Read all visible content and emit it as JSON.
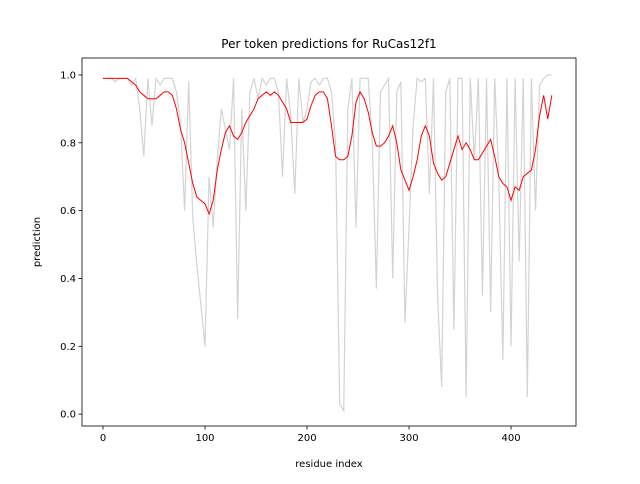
{
  "chart_data": {
    "type": "line",
    "title": "Per token predictions for RuCas12f1",
    "xlabel": "residue index",
    "ylabel": "prediction",
    "x": [
      0,
      4,
      8,
      12,
      16,
      20,
      24,
      28,
      32,
      36,
      40,
      44,
      48,
      52,
      56,
      60,
      64,
      68,
      72,
      76,
      80,
      84,
      88,
      92,
      96,
      100,
      104,
      108,
      112,
      116,
      120,
      124,
      128,
      132,
      136,
      140,
      144,
      148,
      152,
      156,
      160,
      164,
      168,
      172,
      176,
      180,
      184,
      188,
      192,
      196,
      200,
      204,
      208,
      212,
      216,
      220,
      224,
      228,
      232,
      236,
      240,
      244,
      248,
      252,
      256,
      260,
      264,
      268,
      272,
      276,
      280,
      284,
      288,
      292,
      296,
      300,
      304,
      308,
      312,
      316,
      320,
      324,
      328,
      332,
      336,
      340,
      344,
      348,
      352,
      356,
      360,
      364,
      368,
      372,
      376,
      380,
      384,
      388,
      392,
      396,
      400,
      404,
      408,
      412,
      416,
      420,
      424,
      428,
      432,
      436,
      440
    ],
    "series": [
      {
        "color": "#d3d3d3",
        "values": [
          0.99,
          0.99,
          0.99,
          0.98,
          0.99,
          0.99,
          0.99,
          0.97,
          0.99,
          0.9,
          0.76,
          0.99,
          0.85,
          0.99,
          0.97,
          0.99,
          0.99,
          0.99,
          0.95,
          0.86,
          0.6,
          0.98,
          0.58,
          0.44,
          0.32,
          0.2,
          0.7,
          0.55,
          0.75,
          0.9,
          0.84,
          0.78,
          0.99,
          0.28,
          0.9,
          0.6,
          0.95,
          0.99,
          0.93,
          0.99,
          0.97,
          0.99,
          0.99,
          0.95,
          0.7,
          0.99,
          0.88,
          0.65,
          0.99,
          0.86,
          0.9,
          0.98,
          0.99,
          0.97,
          0.99,
          0.99,
          0.95,
          0.8,
          0.03,
          0.01,
          0.9,
          0.99,
          0.55,
          0.99,
          0.99,
          0.99,
          0.8,
          0.37,
          0.95,
          0.97,
          0.99,
          0.4,
          0.95,
          0.98,
          0.27,
          0.55,
          0.85,
          0.99,
          0.98,
          0.99,
          0.65,
          0.99,
          0.35,
          0.08,
          0.95,
          0.99,
          0.25,
          0.99,
          0.99,
          0.05,
          0.99,
          0.75,
          0.99,
          0.35,
          0.99,
          0.3,
          0.99,
          0.7,
          0.16,
          0.99,
          0.2,
          0.99,
          0.45,
          0.99,
          0.05,
          0.99,
          0.6,
          0.97,
          0.99,
          1.0,
          1.0
        ]
      },
      {
        "color": "#ff0000",
        "values": [
          0.99,
          0.99,
          0.99,
          0.99,
          0.99,
          0.99,
          0.99,
          0.98,
          0.97,
          0.95,
          0.94,
          0.93,
          0.93,
          0.93,
          0.94,
          0.95,
          0.95,
          0.94,
          0.9,
          0.84,
          0.8,
          0.74,
          0.68,
          0.64,
          0.63,
          0.62,
          0.59,
          0.63,
          0.72,
          0.78,
          0.83,
          0.85,
          0.82,
          0.81,
          0.83,
          0.86,
          0.88,
          0.9,
          0.93,
          0.94,
          0.95,
          0.94,
          0.95,
          0.94,
          0.92,
          0.9,
          0.86,
          0.86,
          0.86,
          0.86,
          0.87,
          0.91,
          0.94,
          0.95,
          0.95,
          0.93,
          0.85,
          0.76,
          0.75,
          0.75,
          0.76,
          0.82,
          0.92,
          0.95,
          0.93,
          0.89,
          0.83,
          0.79,
          0.79,
          0.8,
          0.82,
          0.85,
          0.8,
          0.72,
          0.69,
          0.66,
          0.7,
          0.75,
          0.82,
          0.85,
          0.82,
          0.74,
          0.71,
          0.69,
          0.7,
          0.74,
          0.78,
          0.82,
          0.78,
          0.8,
          0.78,
          0.75,
          0.75,
          0.77,
          0.79,
          0.81,
          0.76,
          0.7,
          0.68,
          0.67,
          0.63,
          0.67,
          0.66,
          0.7,
          0.71,
          0.72,
          0.78,
          0.88,
          0.94,
          0.87,
          0.94
        ]
      }
    ],
    "xlim": [
      -20.6,
      463.7
    ],
    "xticks": [
      0,
      100,
      200,
      300,
      400
    ],
    "ylim": [
      -0.035,
      1.05
    ],
    "yticks": [
      {
        "value": 0,
        "label": "0.0"
      },
      0.2,
      0.4,
      0.6,
      0.8,
      {
        "value": 1,
        "label": "1.0"
      }
    ]
  }
}
